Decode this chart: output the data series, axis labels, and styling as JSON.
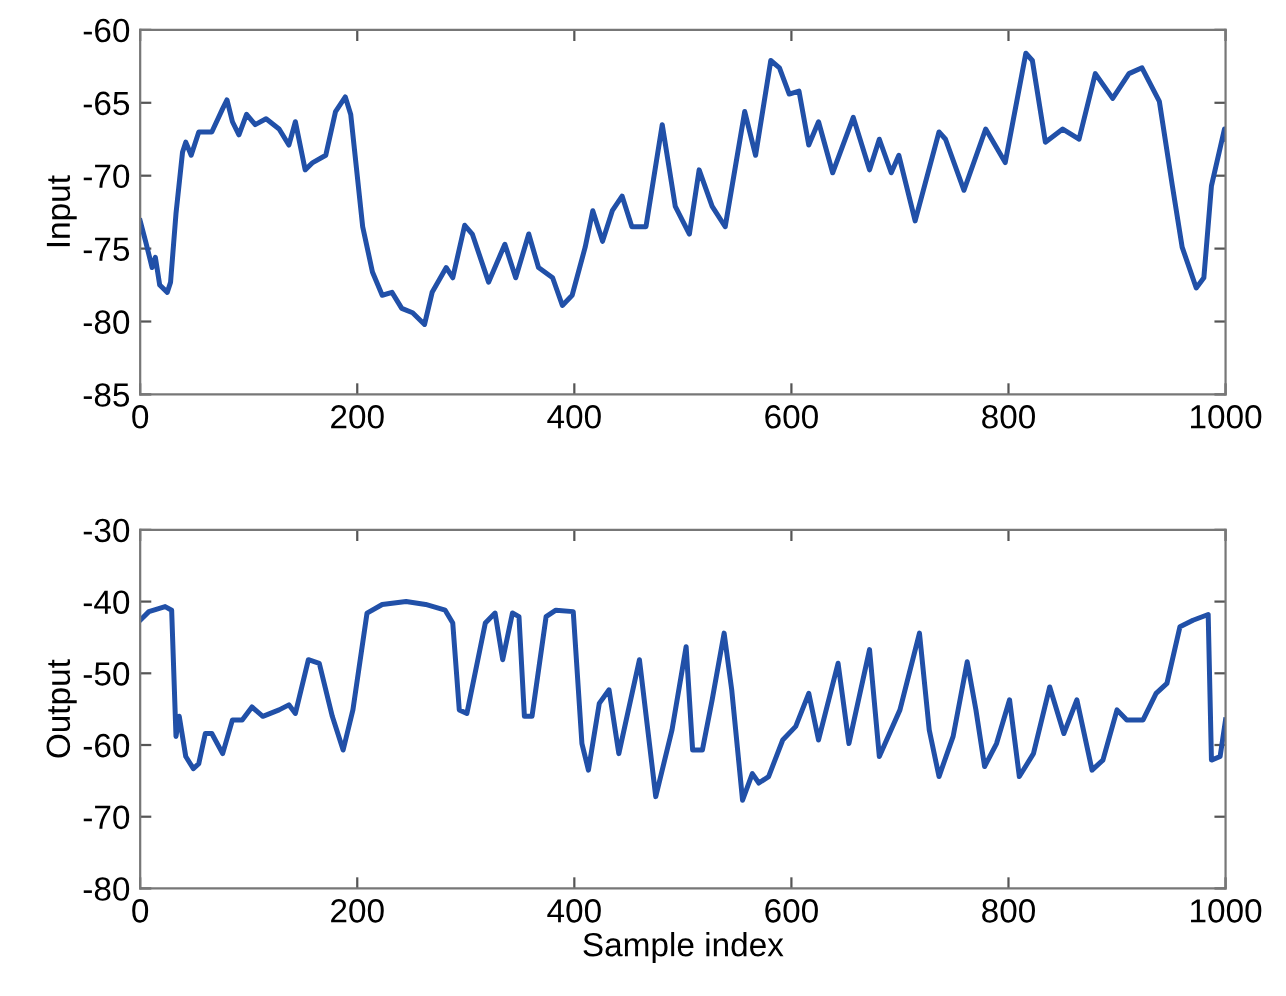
{
  "chart_data": [
    {
      "type": "line",
      "ylabel": "Input",
      "color": "#2150a8",
      "xlim": [
        0,
        1000
      ],
      "ylim": [
        -85,
        -60
      ],
      "xticks": [
        0,
        200,
        400,
        600,
        800,
        1000
      ],
      "yticks": [
        -85,
        -80,
        -75,
        -70,
        -65,
        -60
      ],
      "grid": false,
      "x": [
        0,
        5,
        11,
        14,
        18,
        25,
        28,
        33,
        39,
        42,
        47,
        54,
        66,
        76,
        80,
        85,
        91,
        98,
        106,
        116,
        128,
        137,
        143,
        152,
        159,
        171,
        180,
        189,
        194,
        205,
        214,
        223,
        232,
        241,
        251,
        262,
        269,
        282,
        288,
        299,
        306,
        321,
        336,
        346,
        358,
        367,
        380,
        389,
        398,
        410,
        417,
        426,
        435,
        444,
        453,
        466,
        481,
        493,
        506,
        515,
        527,
        539,
        557,
        567,
        581,
        589,
        598,
        607,
        616,
        625,
        638,
        657,
        672,
        681,
        692,
        699,
        714,
        736,
        742,
        759,
        779,
        797,
        816,
        822,
        834,
        850,
        865,
        880,
        896,
        911,
        923,
        939,
        951,
        960,
        973,
        980,
        987,
        999,
        1000
      ],
      "values": [
        -73.1,
        -74.5,
        -76.3,
        -75.6,
        -77.5,
        -78.0,
        -77.3,
        -72.6,
        -68.4,
        -67.7,
        -68.6,
        -67.0,
        -67.0,
        -65.4,
        -64.8,
        -66.3,
        -67.2,
        -65.8,
        -66.5,
        -66.1,
        -66.8,
        -67.9,
        -66.3,
        -69.6,
        -69.1,
        -68.6,
        -65.6,
        -64.6,
        -65.8,
        -73.5,
        -76.6,
        -78.2,
        -78.0,
        -79.1,
        -79.4,
        -80.2,
        -78.0,
        -76.3,
        -77.0,
        -73.4,
        -74.0,
        -77.3,
        -74.7,
        -77.0,
        -74.0,
        -76.3,
        -77.0,
        -78.9,
        -78.2,
        -74.9,
        -72.4,
        -74.5,
        -72.4,
        -71.4,
        -73.5,
        -73.5,
        -66.5,
        -72.1,
        -74.0,
        -69.6,
        -72.1,
        -73.5,
        -65.6,
        -68.6,
        -62.1,
        -62.6,
        -64.4,
        -64.2,
        -67.9,
        -66.3,
        -69.8,
        -66.0,
        -69.6,
        -67.5,
        -69.8,
        -68.6,
        -73.1,
        -67.0,
        -67.5,
        -71.0,
        -66.8,
        -69.1,
        -61.6,
        -62.1,
        -67.7,
        -66.8,
        -67.5,
        -63.0,
        -64.7,
        -63.0,
        -62.6,
        -64.9,
        -70.7,
        -74.9,
        -77.7,
        -77.0,
        -70.7,
        -66.8,
        -67.5
      ]
    },
    {
      "type": "line",
      "ylabel": "Output",
      "xlabel": "Sample index",
      "color": "#2150a8",
      "xlim": [
        0,
        1000
      ],
      "ylim": [
        -80,
        -30
      ],
      "xticks": [
        0,
        200,
        400,
        600,
        800,
        1000
      ],
      "yticks": [
        -80,
        -70,
        -60,
        -50,
        -40,
        -30
      ],
      "grid": false,
      "x": [
        0,
        8,
        23,
        29,
        33,
        36,
        42,
        49,
        54,
        60,
        66,
        76,
        85,
        94,
        103,
        113,
        128,
        137,
        143,
        155,
        165,
        177,
        187,
        196,
        209,
        223,
        245,
        263,
        281,
        288,
        294,
        301,
        318,
        327,
        334,
        343,
        349,
        354,
        361,
        374,
        383,
        399,
        407,
        413,
        423,
        432,
        441,
        460,
        475,
        490,
        503,
        509,
        518,
        527,
        538,
        545,
        555,
        564,
        570,
        579,
        592,
        604,
        616,
        625,
        643,
        653,
        672,
        681,
        700,
        718,
        727,
        736,
        749,
        762,
        770,
        778,
        789,
        801,
        810,
        823,
        838,
        851,
        863,
        877,
        887,
        900,
        909,
        924,
        936,
        946,
        958,
        970,
        984,
        987,
        995,
        1000
      ],
      "values": [
        -42.6,
        -41.4,
        -40.7,
        -41.2,
        -58.8,
        -56.0,
        -61.6,
        -63.3,
        -62.6,
        -58.4,
        -58.4,
        -61.2,
        -56.5,
        -56.5,
        -54.7,
        -56.0,
        -55.1,
        -54.4,
        -55.6,
        -48.1,
        -48.6,
        -56.0,
        -60.7,
        -55.1,
        -41.6,
        -40.4,
        -40.0,
        -40.4,
        -41.2,
        -43.0,
        -55.1,
        -55.6,
        -43.0,
        -41.6,
        -48.1,
        -41.6,
        -42.1,
        -56.0,
        -56.0,
        -42.1,
        -41.2,
        -41.4,
        -59.8,
        -63.5,
        -54.2,
        -52.3,
        -61.2,
        -48.1,
        -67.2,
        -57.9,
        -46.3,
        -60.7,
        -60.7,
        -53.7,
        -44.4,
        -52.3,
        -67.7,
        -64.0,
        -65.3,
        -64.4,
        -59.3,
        -57.4,
        -52.8,
        -59.3,
        -48.6,
        -59.8,
        -46.7,
        -61.6,
        -55.1,
        -44.4,
        -57.9,
        -64.4,
        -58.8,
        -48.4,
        -55.1,
        -63.0,
        -59.8,
        -53.7,
        -64.4,
        -61.2,
        -51.9,
        -58.4,
        -53.7,
        -63.5,
        -62.1,
        -55.1,
        -56.5,
        -56.5,
        -52.8,
        -51.4,
        -43.5,
        -42.6,
        -41.8,
        -62.1,
        -61.6,
        -56.5
      ]
    }
  ]
}
